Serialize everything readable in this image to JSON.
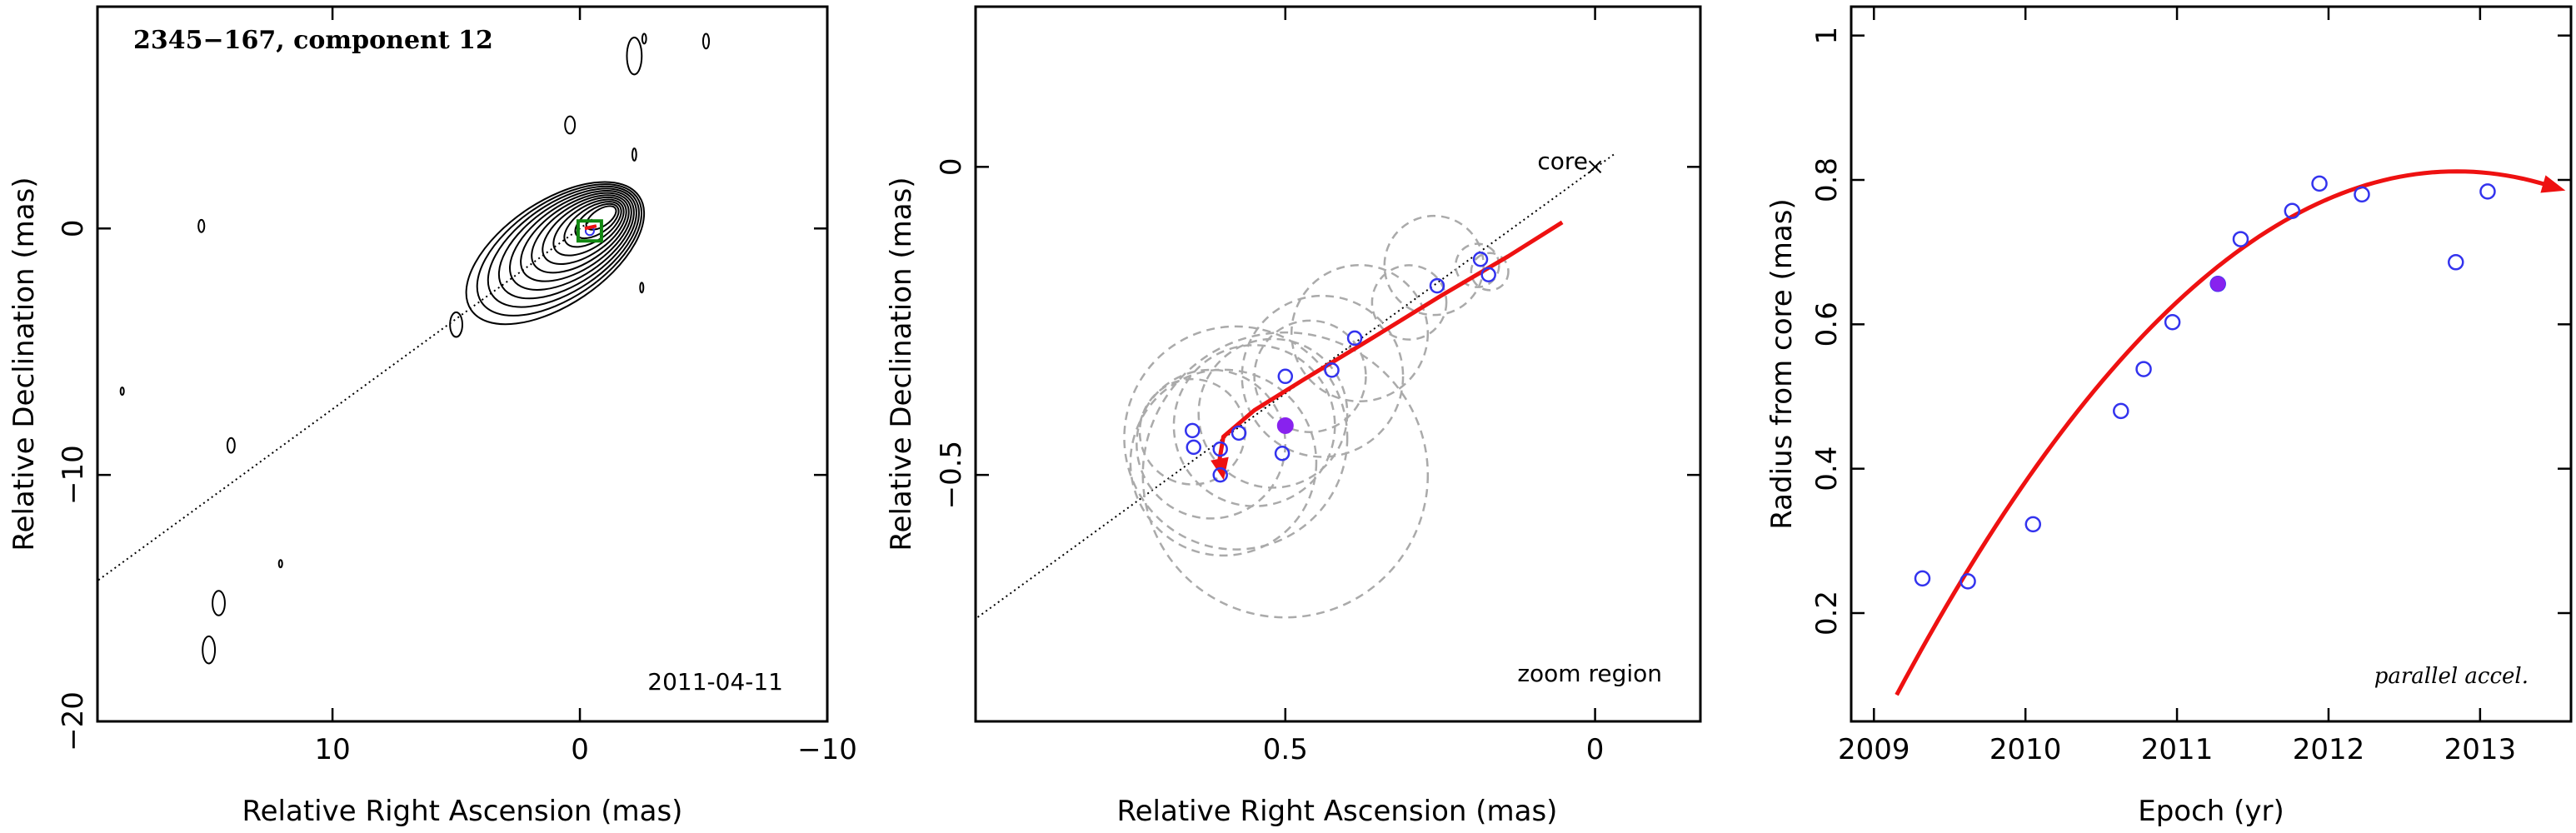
{
  "colors": {
    "data_point": "#3333ee",
    "highlight_point": "#8822ee",
    "fit_curve": "#ee1111",
    "circles": "#aaaaaa",
    "contours": "#000000",
    "core_marker": "#118811"
  },
  "chart_data": [
    {
      "type": "contour_map",
      "title": "2345−167, component 12",
      "date": "2011-04-11",
      "xlabel": "Relative Right Ascension (mas)",
      "ylabel": "Relative Declination (mas)",
      "xlim": [
        19.5,
        -10
      ],
      "ylim": [
        -20,
        9
      ],
      "xticks": [
        {
          "v": 10,
          "label": "10"
        },
        {
          "v": 0,
          "label": "0"
        },
        {
          "v": -10,
          "label": "−10"
        }
      ],
      "yticks": [
        {
          "v": 0,
          "label": "0"
        },
        {
          "v": -10,
          "label": "−10"
        },
        {
          "v": -20,
          "label": "−20"
        }
      ],
      "direction_line": {
        "slope": 0.733,
        "x_range": [
          -0.5,
          20
        ]
      },
      "contour_core": [
        -0.4,
        -0.1
      ],
      "contour_islands": [
        {
          "x": 15.3,
          "y": 0.1,
          "rx": 0.12,
          "ry": 0.25
        },
        {
          "x": 0.4,
          "y": 4.2,
          "rx": 0.2,
          "ry": 0.35
        },
        {
          "x": -2.2,
          "y": 7.0,
          "rx": 0.3,
          "ry": 0.75
        },
        {
          "x": -2.6,
          "y": 7.7,
          "rx": 0.08,
          "ry": 0.2
        },
        {
          "x": -5.1,
          "y": 7.6,
          "rx": 0.12,
          "ry": 0.3
        },
        {
          "x": -2.2,
          "y": 3.0,
          "rx": 0.08,
          "ry": 0.25
        },
        {
          "x": -2.5,
          "y": -2.4,
          "rx": 0.06,
          "ry": 0.2
        },
        {
          "x": 5.0,
          "y": -3.9,
          "rx": 0.25,
          "ry": 0.5
        },
        {
          "x": 14.1,
          "y": -8.8,
          "rx": 0.15,
          "ry": 0.3
        },
        {
          "x": 18.5,
          "y": -6.6,
          "rx": 0.05,
          "ry": 0.15
        },
        {
          "x": 14.6,
          "y": -15.2,
          "rx": 0.25,
          "ry": 0.5
        },
        {
          "x": 15.0,
          "y": -17.1,
          "rx": 0.25,
          "ry": 0.55
        },
        {
          "x": 12.1,
          "y": -13.6,
          "rx": 0.04,
          "ry": 0.15
        }
      ]
    },
    {
      "type": "scatter",
      "title": "",
      "label_core": "core",
      "label_region": "zoom region",
      "xlabel": "Relative Right Ascension (mas)",
      "ylabel": "Relative Declination (mas)",
      "xlim": [
        1.0,
        -0.17
      ],
      "ylim": [
        -0.9,
        0.26
      ],
      "xticks": [
        {
          "v": 0.5,
          "label": "0.5"
        },
        {
          "v": 0,
          "label": "0"
        }
      ],
      "yticks": [
        {
          "v": 0,
          "label": "0"
        },
        {
          "v": -0.5,
          "label": "−0.5"
        }
      ],
      "core_position": [
        0,
        0
      ],
      "points": [
        {
          "x": 0.65,
          "y": -0.428
        },
        {
          "x": 0.648,
          "y": -0.455
        },
        {
          "x": 0.605,
          "y": -0.458
        },
        {
          "x": 0.605,
          "y": -0.5
        },
        {
          "x": 0.575,
          "y": -0.432
        },
        {
          "x": 0.505,
          "y": -0.465
        },
        {
          "x": 0.5,
          "y": -0.34
        },
        {
          "x": 0.425,
          "y": -0.33
        },
        {
          "x": 0.388,
          "y": -0.278
        },
        {
          "x": 0.255,
          "y": -0.193
        },
        {
          "x": 0.185,
          "y": -0.15
        },
        {
          "x": 0.172,
          "y": -0.175
        }
      ],
      "highlight": {
        "x": 0.5,
        "y": -0.42
      },
      "circles": [
        {
          "x": 0.65,
          "y": -0.43,
          "r": 0.085
        },
        {
          "x": 0.62,
          "y": -0.45,
          "r": 0.12
        },
        {
          "x": 0.6,
          "y": -0.48,
          "r": 0.15
        },
        {
          "x": 0.58,
          "y": -0.44,
          "r": 0.18
        },
        {
          "x": 0.55,
          "y": -0.42,
          "r": 0.13
        },
        {
          "x": 0.52,
          "y": -0.4,
          "r": 0.12
        },
        {
          "x": 0.5,
          "y": -0.5,
          "r": 0.23
        },
        {
          "x": 0.46,
          "y": -0.34,
          "r": 0.09
        },
        {
          "x": 0.44,
          "y": -0.34,
          "r": 0.13
        },
        {
          "x": 0.38,
          "y": -0.27,
          "r": 0.11
        },
        {
          "x": 0.3,
          "y": -0.22,
          "r": 0.06
        },
        {
          "x": 0.26,
          "y": -0.16,
          "r": 0.08
        },
        {
          "x": 0.19,
          "y": -0.16,
          "r": 0.035
        },
        {
          "x": 0.17,
          "y": -0.17,
          "r": 0.03
        }
      ],
      "fit_path": [
        {
          "x": 0.053,
          "y": -0.09
        },
        {
          "x": 0.14,
          "y": -0.145
        },
        {
          "x": 0.25,
          "y": -0.21
        },
        {
          "x": 0.36,
          "y": -0.278
        },
        {
          "x": 0.47,
          "y": -0.345
        },
        {
          "x": 0.55,
          "y": -0.395
        },
        {
          "x": 0.6,
          "y": -0.438
        },
        {
          "x": 0.606,
          "y": -0.474
        },
        {
          "x": 0.602,
          "y": -0.495
        }
      ]
    },
    {
      "type": "scatter",
      "title": "",
      "annotation": "parallel accel.",
      "xlabel": "Epoch (yr)",
      "ylabel": "Radius from core (mas)",
      "xlim": [
        2008.85,
        2013.6
      ],
      "ylim": [
        0.05,
        1.04
      ],
      "xticks": [
        {
          "v": 2009,
          "label": "2009"
        },
        {
          "v": 2010,
          "label": "2010"
        },
        {
          "v": 2011,
          "label": "2011"
        },
        {
          "v": 2012,
          "label": "2012"
        },
        {
          "v": 2013,
          "label": "2013"
        }
      ],
      "yticks": [
        {
          "v": 0.2,
          "label": "0.2"
        },
        {
          "v": 0.4,
          "label": "0.4"
        },
        {
          "v": 0.6,
          "label": "0.6"
        },
        {
          "v": 0.8,
          "label": "0.8"
        },
        {
          "v": 1.0,
          "label": "1"
        }
      ],
      "points": [
        {
          "x": 2009.32,
          "y": 0.248
        },
        {
          "x": 2009.62,
          "y": 0.244
        },
        {
          "x": 2010.05,
          "y": 0.323
        },
        {
          "x": 2010.63,
          "y": 0.48
        },
        {
          "x": 2010.78,
          "y": 0.538
        },
        {
          "x": 2010.97,
          "y": 0.603
        },
        {
          "x": 2011.27,
          "y": 0.656
        },
        {
          "x": 2011.42,
          "y": 0.718
        },
        {
          "x": 2011.76,
          "y": 0.757
        },
        {
          "x": 2011.94,
          "y": 0.795
        },
        {
          "x": 2012.22,
          "y": 0.78
        },
        {
          "x": 2012.84,
          "y": 0.686
        },
        {
          "x": 2013.05,
          "y": 0.784
        }
      ],
      "highlight": {
        "x": 2011.27,
        "y": 0.656
      },
      "fit": {
        "a": 0.631,
        "b": 0.196,
        "c": -0.0531,
        "x0": 2011,
        "x_range": [
          2009.15,
          2013.5
        ]
      }
    }
  ]
}
